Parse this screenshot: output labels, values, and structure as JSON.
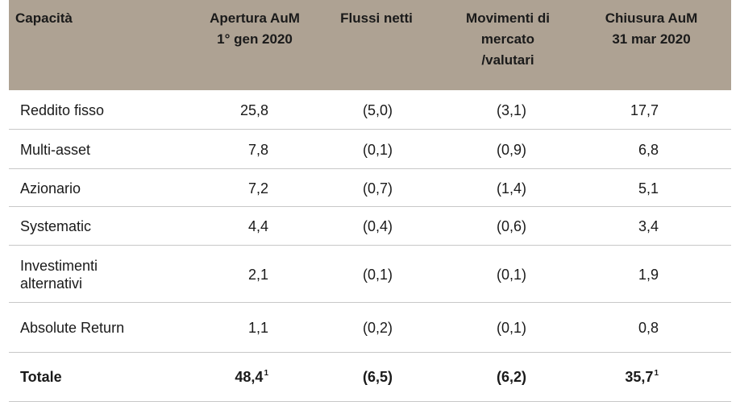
{
  "table": {
    "headers": [
      "Capacità",
      "Apertura AuM\n1° gen 2020",
      "Flussi netti",
      "Movimenti di\nmercato\n/valutari",
      "Chiusura AuM\n31 mar 2020"
    ],
    "rows": [
      {
        "label": "Reddito fisso",
        "apertura": "25,8",
        "flussi": "(5,0)",
        "movimenti": "(3,1)",
        "chiusura": "17,7"
      },
      {
        "label": "Multi-asset",
        "apertura": "7,8",
        "flussi": "(0,1)",
        "movimenti": "(0,9)",
        "chiusura": "6,8"
      },
      {
        "label": "Azionario",
        "apertura": "7,2",
        "flussi": "(0,7)",
        "movimenti": "(1,4)",
        "chiusura": "5,1"
      },
      {
        "label": "Systematic",
        "apertura": "4,4",
        "flussi": "(0,4)",
        "movimenti": "(0,6)",
        "chiusura": "3,4"
      },
      {
        "label": "Investimenti\nalternativi",
        "apertura": "2,1",
        "flussi": "(0,1)",
        "movimenti": "(0,1)",
        "chiusura": "1,9"
      },
      {
        "label": "Absolute Return",
        "apertura": "1,1",
        "flussi": "(0,2)",
        "movimenti": "(0,1)",
        "chiusura": "0,8"
      }
    ],
    "total": {
      "label": "Totale",
      "apertura": "48,4",
      "apertura_note": "1",
      "flussi": "(6,5)",
      "movimenti": "(6,2)",
      "chiusura": "35,7",
      "chiusura_note": "1"
    }
  },
  "colors": {
    "header_bg": "#aea293",
    "row_divider": "#c8c8c8"
  }
}
